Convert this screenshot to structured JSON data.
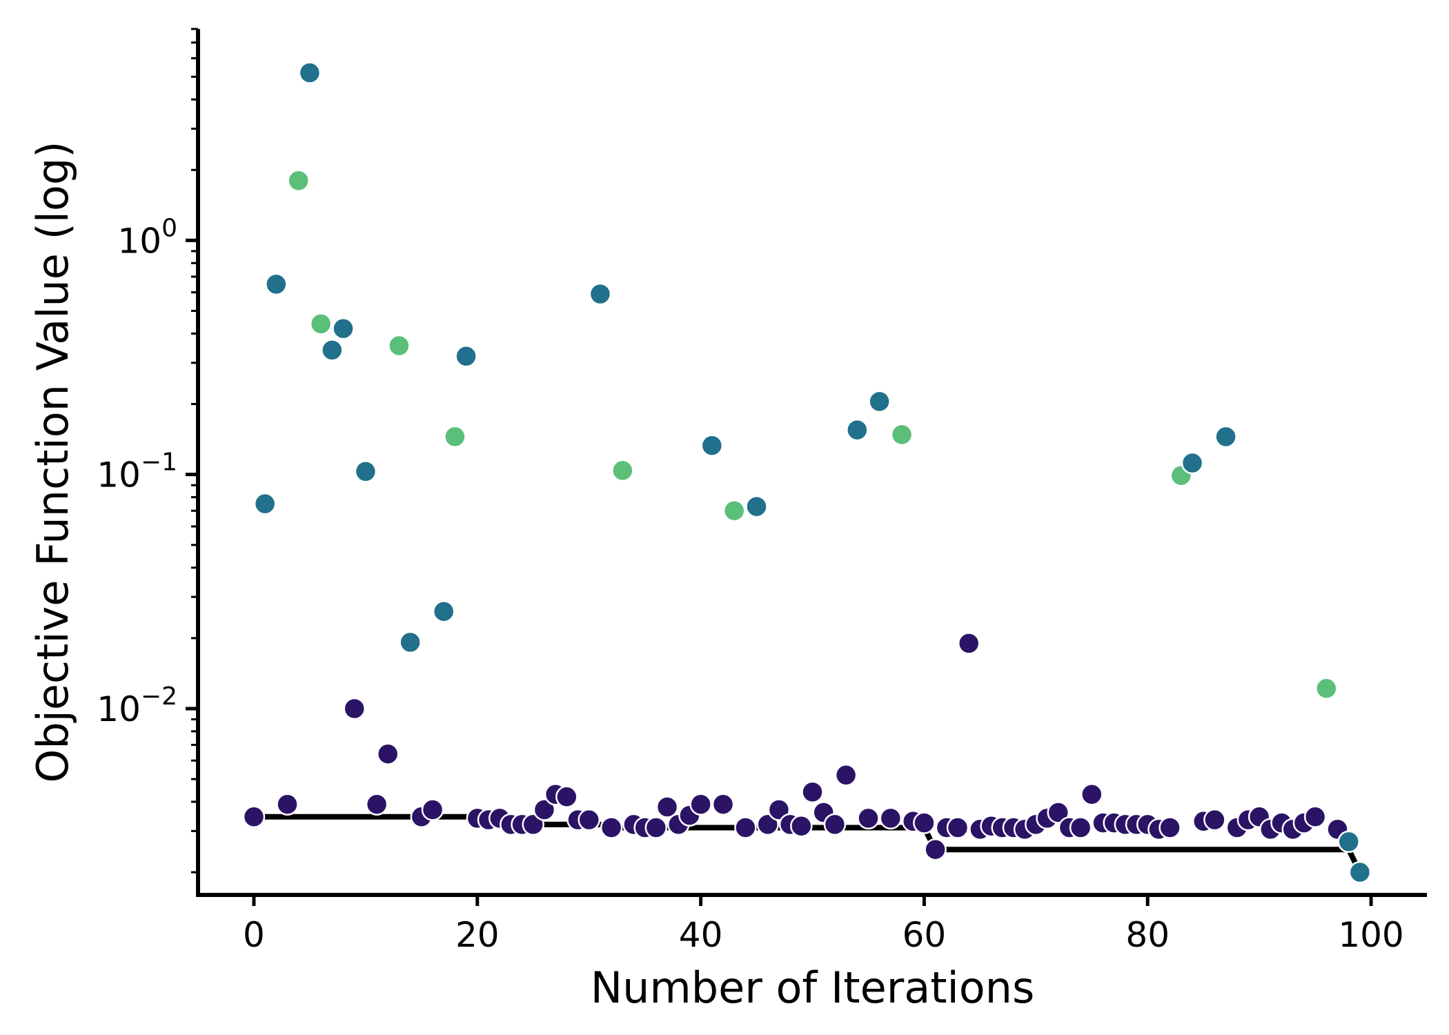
{
  "chart_data": {
    "type": "scatter",
    "xlabel": "Number of Iterations",
    "ylabel": "Objective Function Value (log)",
    "yscale": "log",
    "xlim": [
      -5,
      105
    ],
    "ylim": [
      0.0016,
      8.0
    ],
    "grid": false,
    "x_ticks": [
      {
        "value": 0,
        "label": "0"
      },
      {
        "value": 20,
        "label": "20"
      },
      {
        "value": 40,
        "label": "40"
      },
      {
        "value": 60,
        "label": "60"
      },
      {
        "value": 80,
        "label": "80"
      },
      {
        "value": 100,
        "label": "100"
      }
    ],
    "y_ticks": [
      {
        "value": 0.01,
        "base": "10",
        "exponent": "−2"
      },
      {
        "value": 0.1,
        "base": "10",
        "exponent": "−1"
      },
      {
        "value": 1,
        "base": "10",
        "exponent": "0"
      }
    ],
    "colors": {
      "dark": "#2b1466",
      "teal": "#21708c",
      "green": "#5bbf7a",
      "line": "#000000"
    },
    "points": [
      {
        "x": 0,
        "y": 0.00345,
        "c": "dark"
      },
      {
        "x": 1,
        "y": 0.075,
        "c": "teal"
      },
      {
        "x": 2,
        "y": 0.65,
        "c": "teal"
      },
      {
        "x": 3,
        "y": 0.0039,
        "c": "dark"
      },
      {
        "x": 4,
        "y": 1.8,
        "c": "green"
      },
      {
        "x": 5,
        "y": 5.2,
        "c": "teal"
      },
      {
        "x": 6,
        "y": 0.44,
        "c": "green"
      },
      {
        "x": 7,
        "y": 0.34,
        "c": "teal"
      },
      {
        "x": 8,
        "y": 0.42,
        "c": "teal"
      },
      {
        "x": 9,
        "y": 0.01,
        "c": "dark"
      },
      {
        "x": 10,
        "y": 0.103,
        "c": "teal"
      },
      {
        "x": 11,
        "y": 0.0039,
        "c": "dark"
      },
      {
        "x": 12,
        "y": 0.0064,
        "c": "dark"
      },
      {
        "x": 13,
        "y": 0.355,
        "c": "green"
      },
      {
        "x": 14,
        "y": 0.0192,
        "c": "teal"
      },
      {
        "x": 15,
        "y": 0.00345,
        "c": "dark"
      },
      {
        "x": 16,
        "y": 0.0037,
        "c": "dark"
      },
      {
        "x": 17,
        "y": 0.026,
        "c": "teal"
      },
      {
        "x": 18,
        "y": 0.145,
        "c": "green"
      },
      {
        "x": 19,
        "y": 0.32,
        "c": "teal"
      },
      {
        "x": 20,
        "y": 0.0034,
        "c": "dark"
      },
      {
        "x": 21,
        "y": 0.00335,
        "c": "dark"
      },
      {
        "x": 22,
        "y": 0.0034,
        "c": "dark"
      },
      {
        "x": 23,
        "y": 0.0032,
        "c": "dark"
      },
      {
        "x": 24,
        "y": 0.0032,
        "c": "dark"
      },
      {
        "x": 25,
        "y": 0.0032,
        "c": "dark"
      },
      {
        "x": 26,
        "y": 0.0037,
        "c": "dark"
      },
      {
        "x": 27,
        "y": 0.0043,
        "c": "dark"
      },
      {
        "x": 28,
        "y": 0.0042,
        "c": "dark"
      },
      {
        "x": 29,
        "y": 0.00335,
        "c": "dark"
      },
      {
        "x": 30,
        "y": 0.00335,
        "c": "dark"
      },
      {
        "x": 31,
        "y": 0.59,
        "c": "teal"
      },
      {
        "x": 32,
        "y": 0.0031,
        "c": "dark"
      },
      {
        "x": 33,
        "y": 0.104,
        "c": "green"
      },
      {
        "x": 34,
        "y": 0.0032,
        "c": "dark"
      },
      {
        "x": 35,
        "y": 0.0031,
        "c": "dark"
      },
      {
        "x": 36,
        "y": 0.0031,
        "c": "dark"
      },
      {
        "x": 37,
        "y": 0.0038,
        "c": "dark"
      },
      {
        "x": 38,
        "y": 0.0032,
        "c": "dark"
      },
      {
        "x": 39,
        "y": 0.0035,
        "c": "dark"
      },
      {
        "x": 40,
        "y": 0.0039,
        "c": "dark"
      },
      {
        "x": 41,
        "y": 0.133,
        "c": "teal"
      },
      {
        "x": 42,
        "y": 0.0039,
        "c": "dark"
      },
      {
        "x": 43,
        "y": 0.07,
        "c": "green"
      },
      {
        "x": 44,
        "y": 0.0031,
        "c": "dark"
      },
      {
        "x": 45,
        "y": 0.073,
        "c": "teal"
      },
      {
        "x": 46,
        "y": 0.0032,
        "c": "dark"
      },
      {
        "x": 47,
        "y": 0.0037,
        "c": "dark"
      },
      {
        "x": 48,
        "y": 0.0032,
        "c": "dark"
      },
      {
        "x": 49,
        "y": 0.00315,
        "c": "dark"
      },
      {
        "x": 50,
        "y": 0.0044,
        "c": "dark"
      },
      {
        "x": 51,
        "y": 0.0036,
        "c": "dark"
      },
      {
        "x": 52,
        "y": 0.0032,
        "c": "dark"
      },
      {
        "x": 53,
        "y": 0.0052,
        "c": "dark"
      },
      {
        "x": 54,
        "y": 0.155,
        "c": "teal"
      },
      {
        "x": 55,
        "y": 0.0034,
        "c": "dark"
      },
      {
        "x": 56,
        "y": 0.205,
        "c": "teal"
      },
      {
        "x": 57,
        "y": 0.0034,
        "c": "dark"
      },
      {
        "x": 58,
        "y": 0.148,
        "c": "green"
      },
      {
        "x": 59,
        "y": 0.0033,
        "c": "dark"
      },
      {
        "x": 60,
        "y": 0.00325,
        "c": "dark"
      },
      {
        "x": 61,
        "y": 0.0025,
        "c": "dark"
      },
      {
        "x": 62,
        "y": 0.0031,
        "c": "dark"
      },
      {
        "x": 63,
        "y": 0.0031,
        "c": "dark"
      },
      {
        "x": 64,
        "y": 0.019,
        "c": "dark"
      },
      {
        "x": 65,
        "y": 0.00305,
        "c": "dark"
      },
      {
        "x": 66,
        "y": 0.00315,
        "c": "dark"
      },
      {
        "x": 67,
        "y": 0.0031,
        "c": "dark"
      },
      {
        "x": 68,
        "y": 0.0031,
        "c": "dark"
      },
      {
        "x": 69,
        "y": 0.00305,
        "c": "dark"
      },
      {
        "x": 70,
        "y": 0.0032,
        "c": "dark"
      },
      {
        "x": 71,
        "y": 0.0034,
        "c": "dark"
      },
      {
        "x": 72,
        "y": 0.0036,
        "c": "dark"
      },
      {
        "x": 73,
        "y": 0.0031,
        "c": "dark"
      },
      {
        "x": 74,
        "y": 0.0031,
        "c": "dark"
      },
      {
        "x": 75,
        "y": 0.0043,
        "c": "dark"
      },
      {
        "x": 76,
        "y": 0.00325,
        "c": "dark"
      },
      {
        "x": 77,
        "y": 0.00325,
        "c": "dark"
      },
      {
        "x": 78,
        "y": 0.0032,
        "c": "dark"
      },
      {
        "x": 79,
        "y": 0.0032,
        "c": "dark"
      },
      {
        "x": 80,
        "y": 0.0032,
        "c": "dark"
      },
      {
        "x": 81,
        "y": 0.00305,
        "c": "dark"
      },
      {
        "x": 82,
        "y": 0.0031,
        "c": "dark"
      },
      {
        "x": 83,
        "y": 0.099,
        "c": "green"
      },
      {
        "x": 84,
        "y": 0.112,
        "c": "teal"
      },
      {
        "x": 85,
        "y": 0.0033,
        "c": "dark"
      },
      {
        "x": 86,
        "y": 0.00335,
        "c": "dark"
      },
      {
        "x": 87,
        "y": 0.145,
        "c": "teal"
      },
      {
        "x": 88,
        "y": 0.0031,
        "c": "dark"
      },
      {
        "x": 89,
        "y": 0.00335,
        "c": "dark"
      },
      {
        "x": 90,
        "y": 0.00345,
        "c": "dark"
      },
      {
        "x": 91,
        "y": 0.00305,
        "c": "dark"
      },
      {
        "x": 92,
        "y": 0.00325,
        "c": "dark"
      },
      {
        "x": 93,
        "y": 0.00305,
        "c": "dark"
      },
      {
        "x": 94,
        "y": 0.00325,
        "c": "dark"
      },
      {
        "x": 95,
        "y": 0.00345,
        "c": "dark"
      },
      {
        "x": 96,
        "y": 0.0122,
        "c": "green"
      },
      {
        "x": 97,
        "y": 0.00305,
        "c": "dark"
      },
      {
        "x": 98,
        "y": 0.0027,
        "c": "teal"
      },
      {
        "x": 99,
        "y": 0.002,
        "c": "teal"
      }
    ],
    "best_so_far": [
      [
        0,
        0.00345
      ],
      [
        20,
        0.00345
      ],
      [
        22,
        0.00335
      ],
      [
        23,
        0.0032
      ],
      [
        31,
        0.0032
      ],
      [
        32,
        0.0031
      ],
      [
        60,
        0.0031
      ],
      [
        61,
        0.0025
      ],
      [
        98,
        0.0025
      ],
      [
        99,
        0.002
      ]
    ]
  }
}
